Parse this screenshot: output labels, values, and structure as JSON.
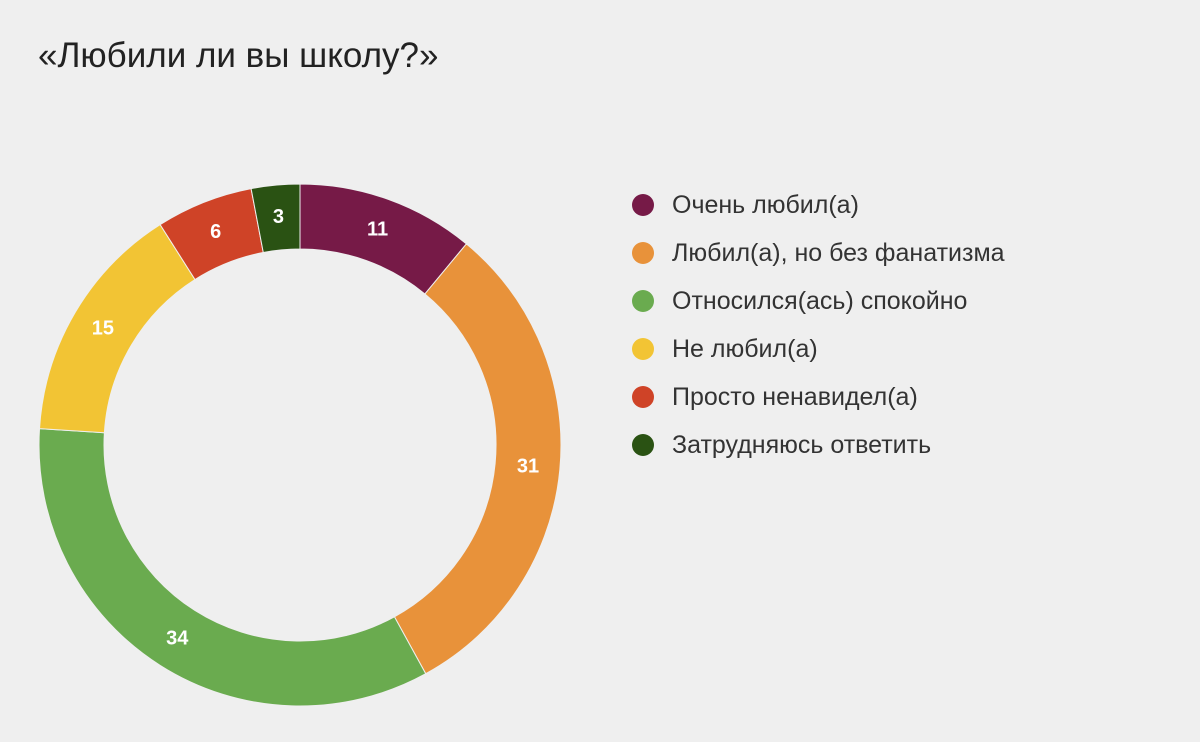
{
  "chart_data": {
    "type": "pie",
    "variant": "donut",
    "title": "«Любили ли вы школу?»",
    "categories": [
      "Очень любил(а)",
      "Любил(а), но без фанатизма",
      "Относился(ась) спокойно",
      "Не любил(а)",
      "Просто ненавидел(а)",
      "Затрудняюсь ответить"
    ],
    "values": [
      11,
      31,
      34,
      15,
      6,
      3
    ],
    "colors": [
      "#761a47",
      "#e8923a",
      "#6aab4f",
      "#f2c434",
      "#cf4327",
      "#2a5213"
    ],
    "data_labels": [
      "11",
      "31",
      "34",
      "15",
      "6",
      "3"
    ],
    "legend_position": "right"
  }
}
